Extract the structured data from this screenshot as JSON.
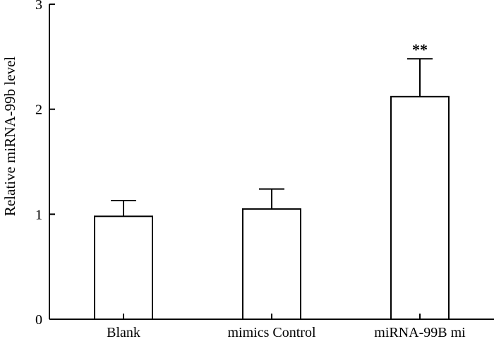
{
  "chart_data": {
    "type": "bar",
    "ylabel": "Relative miRNA-99b level",
    "xlabel": "",
    "ylim": [
      0,
      3
    ],
    "yticks": [
      "0",
      "1",
      "2",
      "3"
    ],
    "categories": [
      "Blank",
      "mimics Control",
      "miRNA-99B mi"
    ],
    "values": [
      0.98,
      1.05,
      2.12
    ],
    "errors": [
      0.15,
      0.19,
      0.36
    ],
    "annotations": [
      "",
      "",
      "**"
    ],
    "bar_color": "#ffffff",
    "edge_color": "#000000",
    "grid": false,
    "legend": "none"
  }
}
